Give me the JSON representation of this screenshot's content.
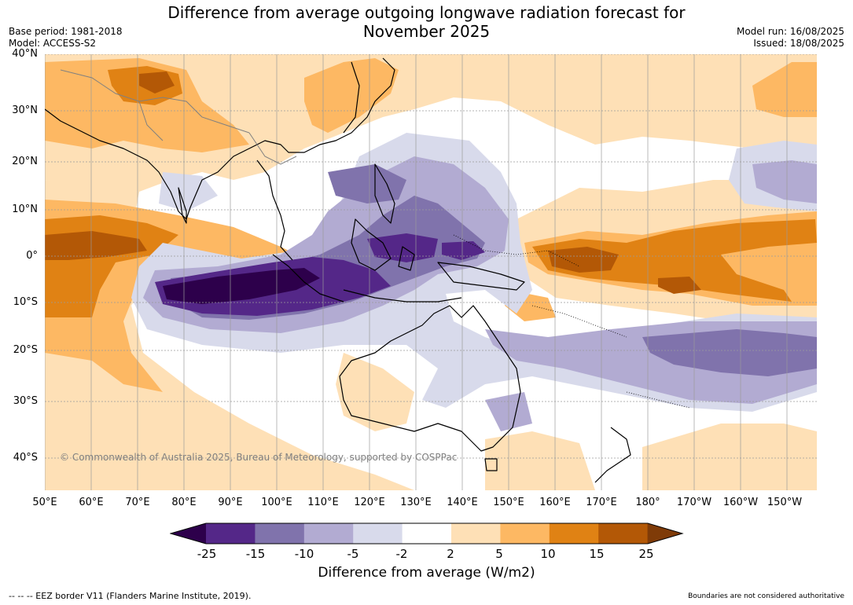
{
  "title_line1": "Difference from average outgoing longwave radiation forecast for",
  "title_line2": "November 2025",
  "meta": {
    "base_period": "Base period: 1981-2018",
    "model": "Model: ACCESS-S2",
    "model_run": "Model run: 16/08/2025",
    "issued": "Issued: 18/08/2025"
  },
  "lat_labels": [
    "40°N",
    "30°N",
    "20°N",
    "10°N",
    "0°",
    "10°S",
    "20°S",
    "30°S",
    "40°S"
  ],
  "lon_labels": [
    "50°E",
    "60°E",
    "70°E",
    "80°E",
    "90°E",
    "100°E",
    "110°E",
    "120°E",
    "130°E",
    "140°E",
    "150°E",
    "160°E",
    "170°E",
    "180°",
    "170°W",
    "160°W",
    "150°W"
  ],
  "copyright": "© Commonwealth of Australia 2025, Bureau of Meteorology, supported by COSPPac",
  "colorbar": {
    "labels": [
      "-25",
      "-15",
      "-10",
      "-5",
      "-2",
      "2",
      "5",
      "10",
      "15",
      "25"
    ],
    "colors": [
      "#2d004b",
      "#542788",
      "#8073ac",
      "#b2abd2",
      "#d8daeb",
      "#ffffff",
      "#fee0b6",
      "#fdb863",
      "#e08214",
      "#b35806",
      "#7f3b08"
    ],
    "title": "Difference from average (W/m2)"
  },
  "footer_left": "--  --  -- EEZ border V11 (Flanders Marine Institute, 2019).",
  "footer_right": "Boundaries are not considered authoritative"
}
